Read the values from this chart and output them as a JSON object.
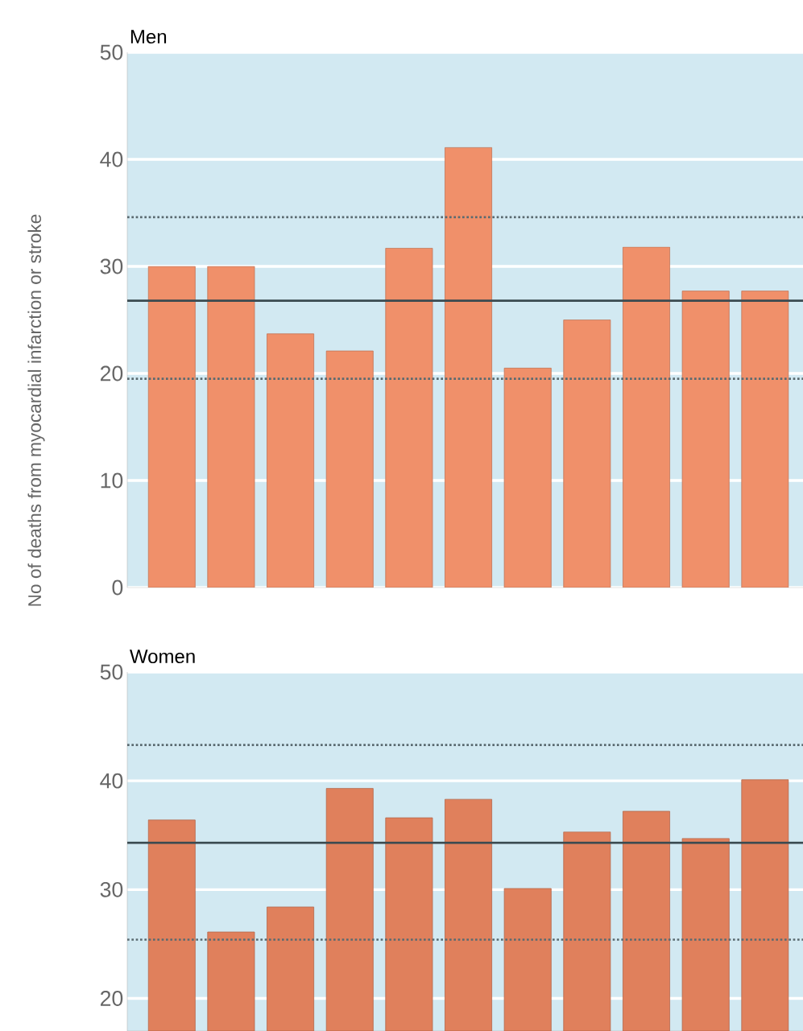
{
  "chart_data": [
    {
      "type": "bar",
      "title": "Men",
      "ylabel": "No of deaths from myocardial infarction or stroke",
      "categories": [
        null,
        null,
        null,
        null,
        null,
        null,
        null,
        null,
        null,
        null,
        null
      ],
      "values": [
        30,
        30,
        23.7,
        22.1,
        31.7,
        41.1,
        20.5,
        25,
        31.8,
        27.7,
        27.7
      ],
      "color": "#f0906a",
      "ylim": [
        0,
        50
      ],
      "yticks": [
        0,
        10,
        20,
        30,
        40,
        50
      ],
      "grid": "y",
      "tick_labels": "y",
      "ref_lines": [
        {
          "axis": "y",
          "value": 26.8,
          "color": "#3a4a50",
          "line_style": "solid"
        },
        {
          "axis": "y",
          "value": 34.6,
          "color": "#5a6a70",
          "line_style": "dotted"
        },
        {
          "axis": "y",
          "value": 19.5,
          "color": "#5a6a70",
          "line_style": "dotted"
        }
      ]
    },
    {
      "type": "bar",
      "title": "Women",
      "categories": [
        null,
        null,
        null,
        null,
        null,
        null,
        null,
        null,
        null,
        null,
        null
      ],
      "values": [
        36.4,
        26.1,
        28.4,
        39.3,
        36.6,
        38.3,
        30.1,
        35.3,
        37.2,
        34.7,
        40.1
      ],
      "color": "#e0805c",
      "ylim": [
        17,
        50
      ],
      "yticks": [
        20,
        30,
        40,
        50
      ],
      "grid": "y",
      "tick_labels": "y",
      "ref_lines": [
        {
          "axis": "y",
          "value": 34.3,
          "color": "#3a4a50",
          "line_style": "solid"
        },
        {
          "axis": "y",
          "value": 43.3,
          "color": "#5a6a70",
          "line_style": "dotted"
        },
        {
          "axis": "y",
          "value": 25.4,
          "color": "#5a6a70",
          "line_style": "dotted"
        }
      ]
    }
  ]
}
